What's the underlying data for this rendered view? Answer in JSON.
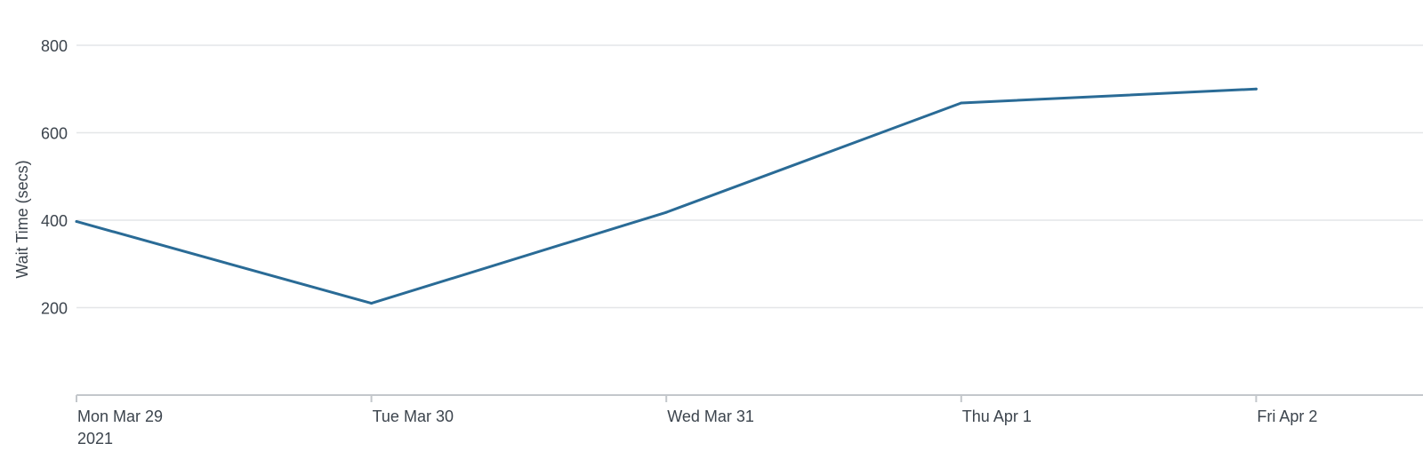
{
  "chart_data": {
    "type": "line",
    "title": "",
    "xlabel": "",
    "ylabel": "Wait Time (secs)",
    "x": [
      "2021-03-29",
      "2021-03-30",
      "2021-03-31",
      "2021-04-01",
      "2021-04-02"
    ],
    "x_tick_labels": [
      "Mon Mar 29",
      "Tue Mar 30",
      "Wed Mar 31",
      "Thu Apr 1",
      "Fri Apr 2"
    ],
    "x_year_label": "2021",
    "y_ticks": [
      200,
      400,
      600,
      800
    ],
    "ylim": [
      0,
      800
    ],
    "grid": true,
    "legend": "none",
    "series": [
      {
        "values": [
          397,
          210,
          418,
          668,
          700
        ],
        "color": "#2a6b96"
      }
    ],
    "colors": {
      "line": "#2a6b96",
      "gridline": "#e4e6e8",
      "axis": "#c3c7cb",
      "text": "#3c444d"
    }
  }
}
